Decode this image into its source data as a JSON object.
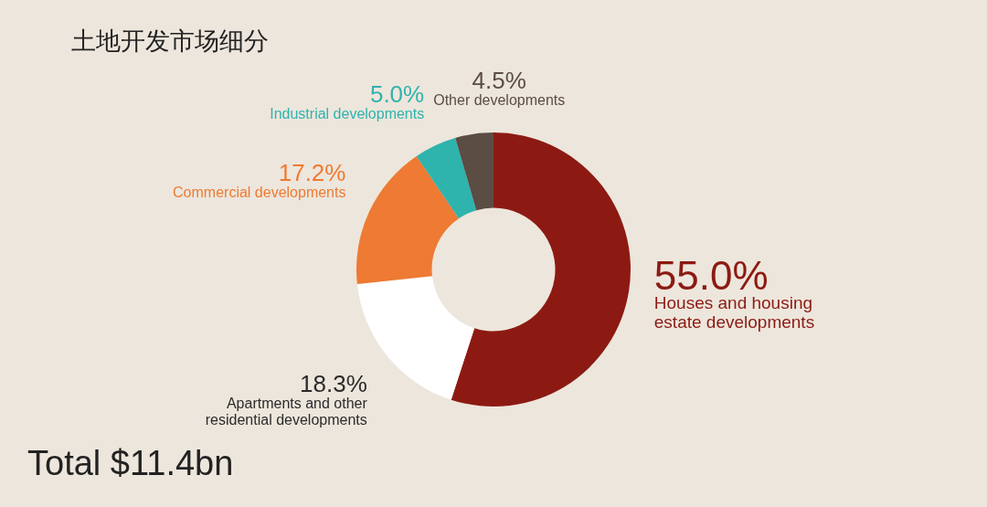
{
  "chart_data": {
    "type": "donut",
    "title": "土地开发市场细分",
    "categories": [
      "Houses and housing estate developments",
      "Apartments and other residential developments",
      "Commercial developments",
      "Industrial developments",
      "Other developments"
    ],
    "values": [
      55.0,
      18.3,
      17.2,
      5.0,
      4.5
    ],
    "value_labels": [
      "55.0%",
      "18.3%",
      "17.2%",
      "5.0%",
      "4.5%"
    ],
    "colors": [
      "#8c1a13",
      "#ffffff",
      "#ee7a33",
      "#2fb3ad",
      "#5b4c44"
    ],
    "annotations": [
      "Total $11.4bn"
    ],
    "legend": false
  }
}
